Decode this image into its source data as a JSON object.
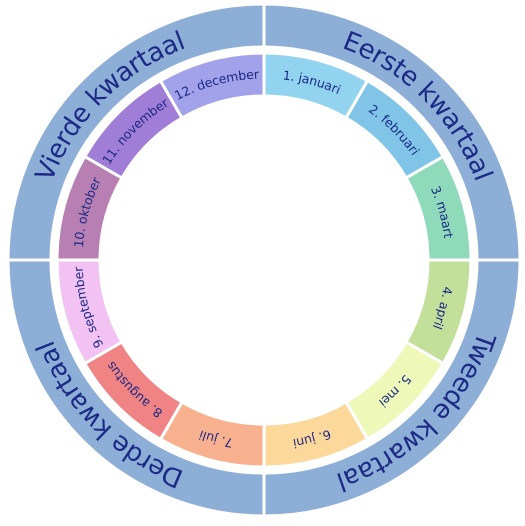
{
  "ring_color": "#8daed6",
  "text_color": "#1c2a86",
  "quarters": [
    {
      "label": "Eerste kwartaal"
    },
    {
      "label": "Tweede kwartaal"
    },
    {
      "label": "Derde kwartaal"
    },
    {
      "label": "Vierde kwartaal"
    }
  ],
  "months": [
    {
      "label": "1. januari",
      "color": "#92d3f0"
    },
    {
      "label": "2. februari",
      "color": "#80c4e8"
    },
    {
      "label": "3. maart",
      "color": "#8fdabb"
    },
    {
      "label": "4. april",
      "color": "#c3e09b"
    },
    {
      "label": "5. mei",
      "color": "#eef8b8"
    },
    {
      "label": "6. juni",
      "color": "#fdd89b"
    },
    {
      "label": "7. juli",
      "color": "#f8b18f"
    },
    {
      "label": "8. augustus",
      "color": "#f08383"
    },
    {
      "label": "9. september",
      "color": "#f2c2f2"
    },
    {
      "label": "10. oktober",
      "color": "#b880b2"
    },
    {
      "label": "11. november",
      "color": "#a07ed8"
    },
    {
      "label": "12. december",
      "color": "#a2a2ea"
    }
  ]
}
